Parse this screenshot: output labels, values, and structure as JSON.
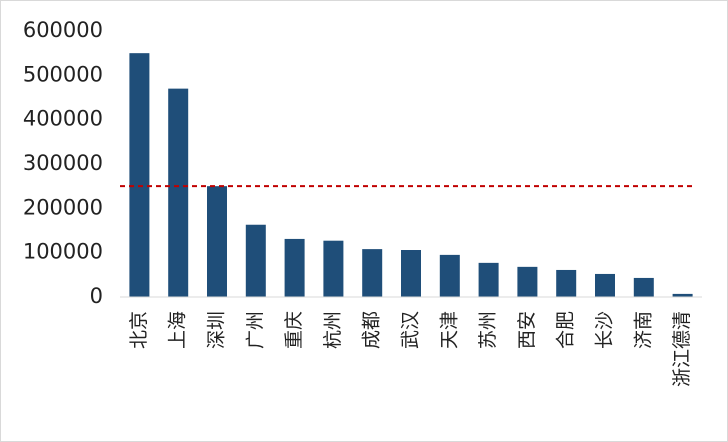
{
  "chart_data": {
    "type": "bar",
    "categories": [
      "北京",
      "上海",
      "深圳",
      "广州",
      "重庆",
      "杭州",
      "成都",
      "武汉",
      "天津",
      "苏州",
      "西安",
      "合肥",
      "长沙",
      "济南",
      "浙江德清"
    ],
    "values": [
      550000,
      470000,
      250000,
      163000,
      131000,
      127000,
      108000,
      106000,
      95000,
      77000,
      68000,
      61000,
      52000,
      43000,
      7000
    ],
    "color": "#1f4e79",
    "ylim": [
      0,
      600000
    ],
    "yticks": [
      0,
      100000,
      200000,
      300000,
      400000,
      500000,
      600000
    ],
    "reference_line": {
      "value": 250000,
      "color": "#c00000"
    }
  }
}
